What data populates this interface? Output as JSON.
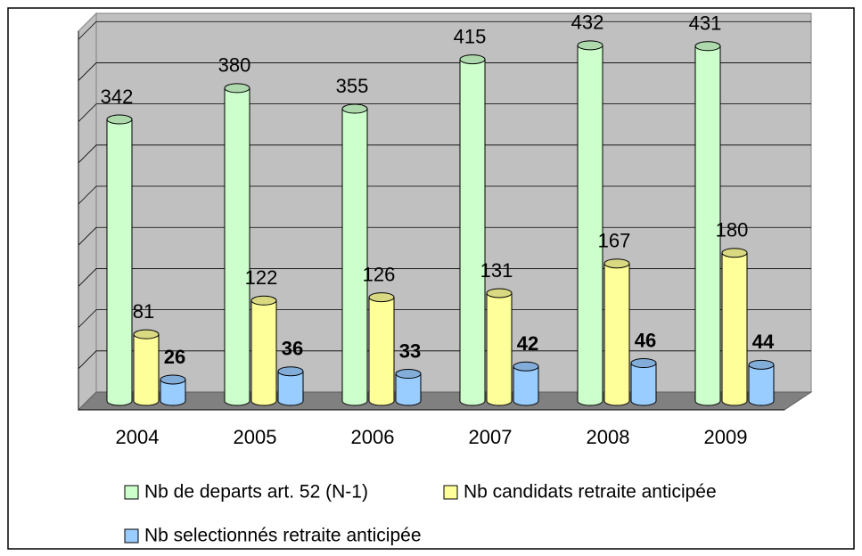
{
  "chart_data": {
    "type": "bar3d",
    "categories": [
      "2004",
      "2005",
      "2006",
      "2007",
      "2008",
      "2009"
    ],
    "series": [
      {
        "name": "Nb de departs art. 52 (N-1)",
        "color": "#ccffcc",
        "values": [
          342,
          380,
          355,
          415,
          432,
          431
        ]
      },
      {
        "name": "Nb candidats retraite anticipée",
        "color": "#ffff99",
        "values": [
          81,
          122,
          126,
          131,
          167,
          180
        ]
      },
      {
        "name": "Nb selectionnés retraite anticipée",
        "color": "#99ccff",
        "values": [
          26,
          36,
          33,
          42,
          46,
          44
        ]
      }
    ],
    "ylim": [
      0,
      460
    ],
    "yticks": [
      0,
      50,
      100,
      150,
      200,
      250,
      300,
      350,
      400,
      450
    ],
    "grid": true
  }
}
